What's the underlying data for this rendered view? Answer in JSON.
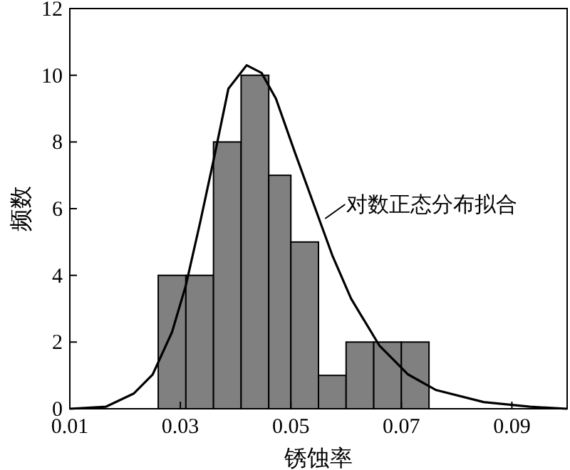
{
  "chart_data": {
    "type": "histogram",
    "xlabel": "锈蚀率",
    "ylabel": "频数",
    "bins": [
      0.026,
      0.031,
      0.036,
      0.041,
      0.046,
      0.05,
      0.055,
      0.06,
      0.065,
      0.07,
      0.075
    ],
    "values": [
      4,
      4,
      8,
      10,
      7,
      5,
      1,
      2,
      2,
      2
    ],
    "color": "#808080",
    "series": [
      {
        "type": "line",
        "color": "#000000",
        "x": [
          0.01,
          0.0165,
          0.0216,
          0.025,
          0.0285,
          0.031,
          0.0336,
          0.0362,
          0.0387,
          0.042,
          0.0447,
          0.0473,
          0.0507,
          0.0541,
          0.0575,
          0.0609,
          0.066,
          0.0712,
          0.0763,
          0.0849,
          0.0933,
          0.1
        ],
        "values": [
          0,
          0.06,
          0.46,
          1.03,
          2.3,
          3.7,
          5.6,
          7.6,
          9.6,
          10.3,
          10.07,
          9.3,
          7.7,
          6.15,
          4.6,
          3.3,
          1.9,
          1.03,
          0.56,
          0.2,
          0.06,
          0
        ]
      }
    ],
    "annotations": [
      {
        "text": "对数正态分布拟合",
        "x": 0.0562,
        "y": 5.7
      }
    ],
    "xlim": [
      0.01,
      0.1
    ],
    "xticks": [
      0.01,
      0.03,
      0.05,
      0.07,
      0.09
    ],
    "ylim": [
      0,
      12
    ],
    "yticks": [
      0,
      2,
      4,
      6,
      8,
      10,
      12
    ]
  }
}
